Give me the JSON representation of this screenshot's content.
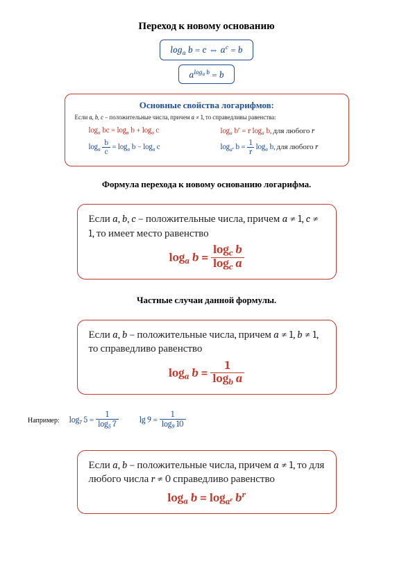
{
  "title": "Переход к новому основанию",
  "formula1": "log<sub>a</sub> b = c ⇔ a<sup>c</sup> = b",
  "formula2": "a<sup>log<sub>a</sub> b</sup> = b",
  "props": {
    "title": "Основные свойства логарифмов:",
    "cond": "Если <span class='it'>a, b, c</span> – положительные числа, причем <span class='it'>a</span> ≠ 1, то справедливы равенства:",
    "row1_left": "log<sub>a</sub> bc = log<sub>a</sub> b + log<sub>a</sub> c",
    "row1_right": "log<sub>a</sub> b<sup>r</sup> = r log<sub>a</sub> b, <span class='black'>для любого <span class=\"it\">r</span></span>",
    "row2_left": "log<sub>a</sub> <span class='frac'><span class='num'>b</span><span class='den'>c</span></span> = log<sub>a</sub> b − log<sub>a</sub> c",
    "row2_right": "log<sub>a<sup>r</sup></sub> b = <span class='frac'><span class='num'>1</span><span class='den'>r</span></span> log<sub>a</sub> b, <span class='black'>для любого <span class=\"it\">r</span></span>"
  },
  "subheading1": "Формула перехода к новому основанию логарифма.",
  "box1": {
    "cond": "Если <span class='it'>a</span>, <span class='it'>b</span>, <span class='it'>c</span> – положительные числа, причем <span class='it'>a</span> ≠ 1, <span class='it'>c</span> ≠ 1, то имеет место равенство",
    "formula": "log<sub>a</sub> <i>b</i> = <span class='frac'><span class='num'>log<sub>c</sub> <i>b</i></span><span class='den'>log<sub>c</sub> <i>a</i></span></span>"
  },
  "subheading2": "Частные случаи данной формулы.",
  "box2": {
    "cond": "Если <span class='it'>a</span>, <span class='it'>b</span> – положительные числа, причем <span class='it'>a</span> ≠ 1, <span class='it'>b</span> ≠ 1, то справедливо равенство",
    "formula": "log<sub>a</sub> <i>b</i> = <span class='frac'><span class='num'>1</span><span class='den'>log<sub>b</sub> <i>a</i></span></span>"
  },
  "example": {
    "label": "Например:",
    "eq1": "log<sub>7</sub> 5 = <span class='frac'><span class='num'>1</span><span class='den'>log<sub>5</sub> 7</span></span>",
    "eq2": "lg 9 = <span class='frac'><span class='num'>1</span><span class='den'>log<sub>9</sub> 10</span></span>"
  },
  "box3": {
    "cond": "Если <span class='it'>a</span>, <span class='it'>b</span> – положительные числа, причем <span class='it'>a</span> ≠ 1, то для любого числа <span class='it'>r</span> ≠ 0 справедливо равенство",
    "formula": "log<sub>a</sub> <i>b</i> = log<sub>a<sup>r</sup></sub> <i>b<sup>r</sup></i>"
  }
}
